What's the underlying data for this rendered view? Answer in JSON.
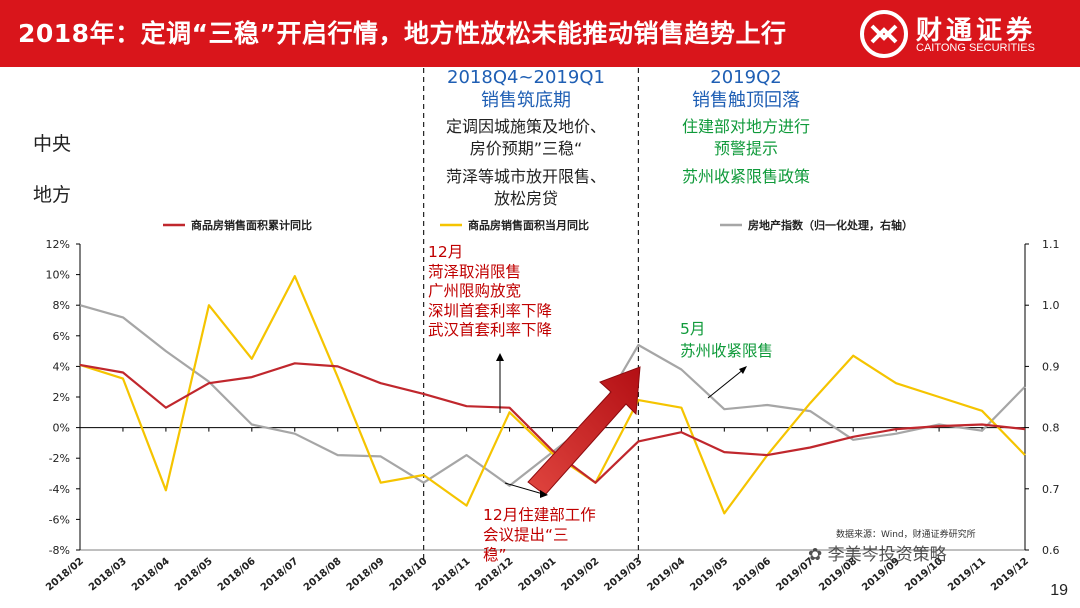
{
  "header": {
    "title": "2018年：定调“三稳”开启行情，地方性放松未能推动销售趋势上行",
    "logo_cn": "财通证券",
    "logo_en": "CAITONG SECURITIES",
    "background": "#d9151b"
  },
  "rows": {
    "central": "中央",
    "local": "地方"
  },
  "periods": [
    {
      "title_line1": "2018Q4~2019Q1",
      "title_line2": "销售筑底期",
      "central_line1": "定调因城施策及地价、",
      "central_line2": "房价预期”三稳“",
      "local_line1": "菏泽等城市放开限售、",
      "local_line2": "放松房贷"
    },
    {
      "title_line1": "2019Q2",
      "title_line2": "销售触顶回落",
      "central_line1": "住建部对地方进行",
      "central_line2": "预警提示",
      "local_line1": "苏州收紧限售政策",
      "local_line2": ""
    }
  ],
  "annotations": {
    "dec": [
      "12月",
      "菏泽取消限售",
      "广州限购放宽",
      "深圳首套利率下降",
      "武汉首套利率下降"
    ],
    "may": [
      "5月",
      "苏州收紧限售"
    ],
    "dec_meeting": [
      "12月住建部工作",
      "会议提出“三",
      "稳”"
    ]
  },
  "source": "数据来源：Wind，财通证券研究所",
  "watermark": "李美岑投资策略",
  "page_number": "19",
  "chart_data": {
    "type": "line",
    "categories": [
      "2018/02",
      "2018/03",
      "2018/04",
      "2018/05",
      "2018/06",
      "2018/07",
      "2018/08",
      "2018/09",
      "2018/10",
      "2018/11",
      "2018/12",
      "2019/01",
      "2019/02",
      "2019/03",
      "2019/04",
      "2019/05",
      "2019/06",
      "2019/07",
      "2019/08",
      "2019/09",
      "2019/10",
      "2019/11",
      "2019/12"
    ],
    "y_left": {
      "min": -8,
      "max": 12,
      "step": 2,
      "unit": "%",
      "ticks": [
        "-8%",
        "-6%",
        "-4%",
        "-2%",
        "0%",
        "2%",
        "4%",
        "6%",
        "8%",
        "10%",
        "12%"
      ]
    },
    "y_right": {
      "min": 0.6,
      "max": 1.1,
      "step": 0.1,
      "ticks": [
        "0.6",
        "0.7",
        "0.8",
        "0.9",
        "1.0",
        "1.1"
      ]
    },
    "legend_position": "top",
    "series": [
      {
        "name": "商品房销售面积累计同比",
        "axis": "left",
        "color": "#c0272d",
        "values": [
          4.1,
          3.6,
          1.3,
          2.9,
          3.3,
          4.2,
          4.0,
          2.9,
          2.2,
          1.4,
          1.3,
          -1.5,
          -3.6,
          -0.9,
          -0.3,
          -1.6,
          -1.8,
          -1.3,
          -0.6,
          -0.1,
          0.1,
          0.2,
          -0.1
        ]
      },
      {
        "name": "商品房销售面积当月同比",
        "axis": "left",
        "color": "#f5c400",
        "values": [
          4.1,
          3.2,
          -4.1,
          8.0,
          4.5,
          9.9,
          3.3,
          -3.6,
          -3.1,
          -5.1,
          1.0,
          -1.7,
          -3.6,
          1.8,
          1.3,
          -5.6,
          -1.8,
          1.6,
          4.7,
          2.9,
          2.0,
          1.1,
          -1.8
        ]
      },
      {
        "name": "房地产指数（归一化处理，右轴）",
        "axis": "right",
        "color": "#a6a6a6",
        "values": [
          1.0,
          0.98,
          0.925,
          0.875,
          0.805,
          0.79,
          0.755,
          0.753,
          0.71,
          0.755,
          0.705,
          0.76,
          0.815,
          0.935,
          0.895,
          0.83,
          0.837,
          0.827,
          0.78,
          0.79,
          0.805,
          0.795,
          0.867
        ]
      }
    ]
  }
}
